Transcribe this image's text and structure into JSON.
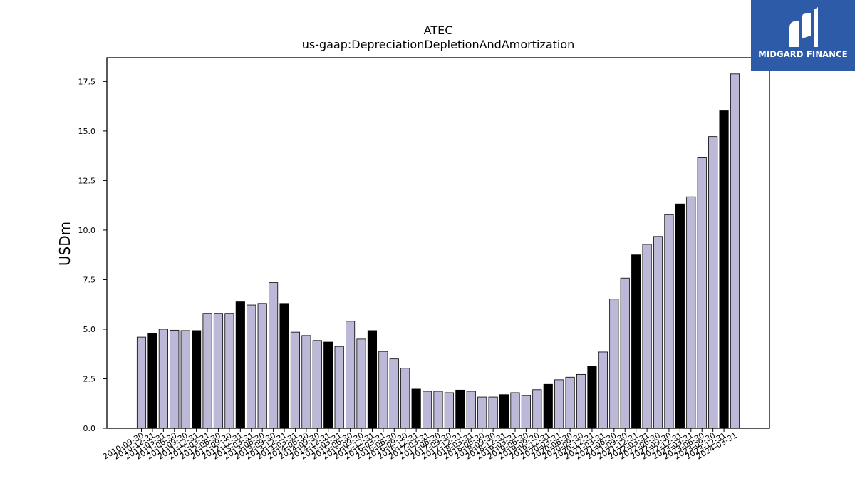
{
  "brand": {
    "name": "MIDGARD FINANCE",
    "bg_color": "#2e5ba8",
    "icon": "midgard-m-logo-icon"
  },
  "chart_data": {
    "type": "bar",
    "title": "ATEC",
    "subtitle": "us-gaap:DepreciationDepletionAndAmortization",
    "xlabel": "",
    "ylabel": "USDm",
    "ylim": [
      0,
      18.7
    ],
    "yticks": [
      "0.0",
      "2.5",
      "5.0",
      "7.5",
      "10.0",
      "12.5",
      "15.0",
      "17.5"
    ],
    "grid": false,
    "colors": {
      "annual": "#000000",
      "quarterly": "#bcb8d8",
      "edge": "#000000"
    },
    "categories": [
      "2010-09-30",
      "2010-12-31",
      "2011-03-31",
      "2011-06-30",
      "2011-09-30",
      "2011-12-31",
      "2012-03-31",
      "2012-06-30",
      "2012-09-30",
      "2012-12-31",
      "2013-03-31",
      "2013-06-30",
      "2013-09-30",
      "2013-12-31",
      "2014-03-31",
      "2014-06-30",
      "2014-09-30",
      "2014-12-31",
      "2015-03-31",
      "2015-06-30",
      "2015-09-30",
      "2015-12-31",
      "2016-03-31",
      "2016-06-30",
      "2016-09-30",
      "2016-12-31",
      "2017-03-31",
      "2017-06-30",
      "2017-09-30",
      "2017-12-31",
      "2018-03-31",
      "2018-06-30",
      "2018-09-30",
      "2018-12-31",
      "2019-03-31",
      "2019-06-30",
      "2019-09-30",
      "2019-12-31",
      "2020-03-31",
      "2020-06-30",
      "2020-09-30",
      "2020-12-31",
      "2021-03-31",
      "2021-06-30",
      "2021-09-30",
      "2021-12-31",
      "2022-03-31",
      "2022-06-30",
      "2022-09-30",
      "2022-12-31",
      "2023-03-31",
      "2023-06-30",
      "2023-09-30",
      "2023-12-31",
      "2024-03-31"
    ],
    "values": [
      4.6,
      4.78,
      5.0,
      4.95,
      4.93,
      4.93,
      5.8,
      5.8,
      5.8,
      6.38,
      6.22,
      6.3,
      7.35,
      6.3,
      4.85,
      4.68,
      4.43,
      4.35,
      4.13,
      5.4,
      4.5,
      4.93,
      3.88,
      3.5,
      3.03,
      1.98,
      1.87,
      1.87,
      1.8,
      1.93,
      1.87,
      1.58,
      1.58,
      1.7,
      1.8,
      1.65,
      1.95,
      2.22,
      2.45,
      2.58,
      2.72,
      3.12,
      3.85,
      6.52,
      7.58,
      8.75,
      9.28,
      9.68,
      10.78,
      11.32,
      11.68,
      13.65,
      14.72,
      16.02,
      17.88
    ],
    "annual": [
      false,
      true,
      false,
      false,
      false,
      true,
      false,
      false,
      false,
      true,
      false,
      false,
      false,
      true,
      false,
      false,
      false,
      true,
      false,
      false,
      false,
      true,
      false,
      false,
      false,
      true,
      false,
      false,
      false,
      true,
      false,
      false,
      false,
      true,
      false,
      false,
      false,
      true,
      false,
      false,
      false,
      true,
      false,
      false,
      false,
      true,
      false,
      false,
      false,
      true,
      false,
      false,
      false,
      true,
      false
    ]
  }
}
